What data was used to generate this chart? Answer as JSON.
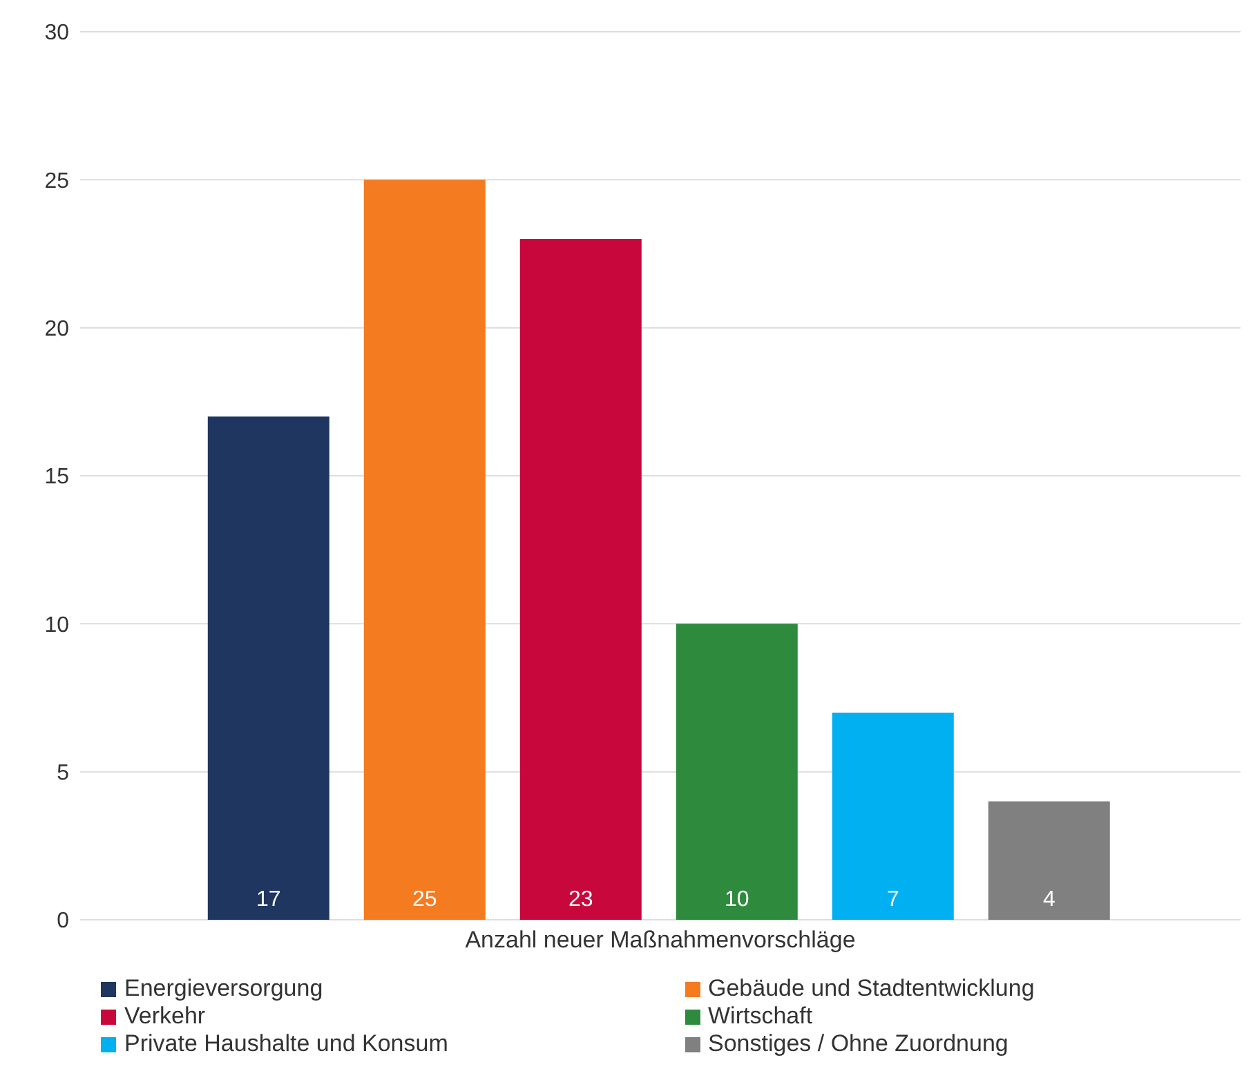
{
  "chart_data": {
    "type": "bar",
    "categories": [
      "Anzahl neuer Maßnahmenvorschläge"
    ],
    "series": [
      {
        "name": "Energieversorgung",
        "color": "#1f3660",
        "values": [
          17
        ]
      },
      {
        "name": "Gebäude und Stadtentwicklung",
        "color": "#f47b20",
        "values": [
          25
        ]
      },
      {
        "name": "Verkehr",
        "color": "#c8073d",
        "values": [
          23
        ]
      },
      {
        "name": "Wirtschaft",
        "color": "#2e8b3e",
        "values": [
          10
        ]
      },
      {
        "name": "Private Haushalte und Konsum",
        "color": "#00b0f0",
        "values": [
          7
        ]
      },
      {
        "name": "Sonstiges / Ohne Zuordnung",
        "color": "#808080",
        "values": [
          4
        ]
      }
    ],
    "ylim": [
      0,
      30
    ],
    "yticks": [
      0,
      5,
      10,
      15,
      20,
      25,
      30
    ],
    "grid": "y",
    "legend": "bottom",
    "data_labels": true
  }
}
